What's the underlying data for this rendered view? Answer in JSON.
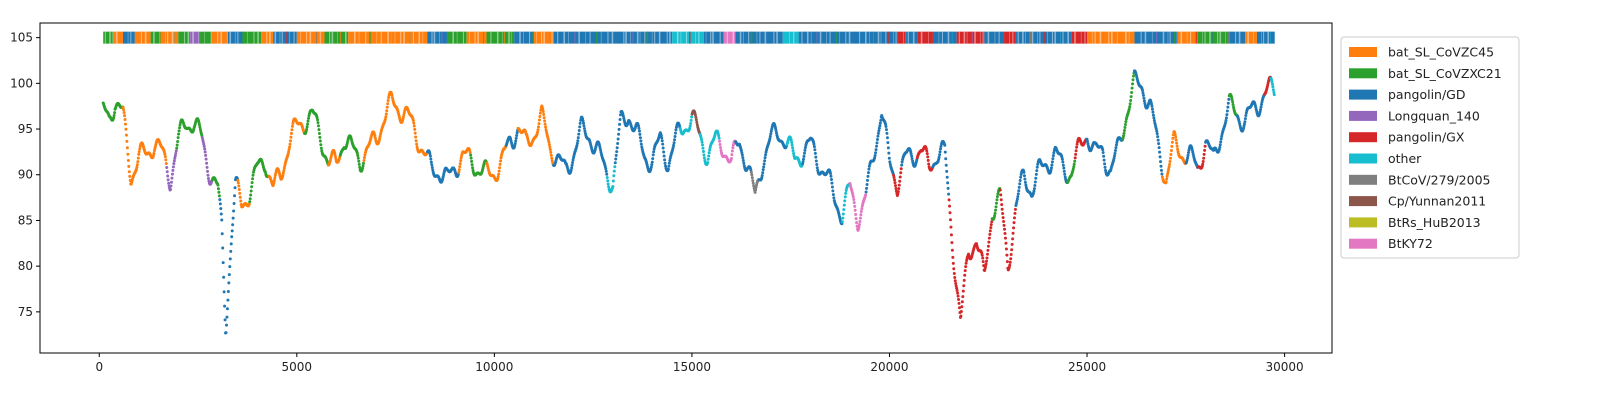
{
  "chart_data": {
    "type": "scatter",
    "xlim": [
      -1500,
      31200
    ],
    "ylim": [
      70.5,
      106.6
    ],
    "x_ticks": [
      0,
      5000,
      10000,
      15000,
      20000,
      25000,
      30000
    ],
    "y_ticks": [
      75,
      80,
      85,
      90,
      95,
      100,
      105
    ],
    "grid": false,
    "legend_placement": "outside-top-right",
    "colors": {
      "bat_SL_CoVZC45": "#ff7f0e",
      "bat_SL_CoVZXC21": "#2ca02c",
      "pangolin/GD": "#1f77b4",
      "Longquan_140": "#9467bd",
      "pangolin/GX": "#d62728",
      "other": "#17becf",
      "BtCoV/279/2005": "#7f7f7f",
      "Cp/Yunnan2011": "#8c564b",
      "BtRs_HuB2013": "#bcbd22",
      "BtKY72": "#e377c2"
    },
    "legend": [
      "bat_SL_CoVZC45",
      "bat_SL_CoVZXC21",
      "pangolin/GD",
      "Longquan_140",
      "pangolin/GX",
      "other",
      "BtCoV/279/2005",
      "Cp/Yunnan2011",
      "BtRs_HuB2013",
      "BtKY72"
    ],
    "strip_y": 105,
    "strip_segments": [
      {
        "x0": 100,
        "x1": 350,
        "series": "bat_SL_CoVZXC21"
      },
      {
        "x0": 350,
        "x1": 600,
        "series": "bat_SL_CoVZC45"
      },
      {
        "x0": 600,
        "x1": 900,
        "series": "pangolin/GD"
      },
      {
        "x0": 900,
        "x1": 1300,
        "series": "bat_SL_CoVZC45"
      },
      {
        "x0": 1300,
        "x1": 1550,
        "series": "bat_SL_CoVZXC21"
      },
      {
        "x0": 1550,
        "x1": 2000,
        "series": "bat_SL_CoVZC45"
      },
      {
        "x0": 2000,
        "x1": 2300,
        "series": "bat_SL_CoVZXC21"
      },
      {
        "x0": 2300,
        "x1": 2550,
        "series": "Longquan_140"
      },
      {
        "x0": 2550,
        "x1": 2850,
        "series": "bat_SL_CoVZXC21"
      },
      {
        "x0": 2850,
        "x1": 3250,
        "series": "bat_SL_CoVZC45"
      },
      {
        "x0": 3250,
        "x1": 3650,
        "series": "pangolin/GD"
      },
      {
        "x0": 3650,
        "x1": 4100,
        "series": "bat_SL_CoVZXC21"
      },
      {
        "x0": 4100,
        "x1": 4400,
        "series": "bat_SL_CoVZC45"
      },
      {
        "x0": 4400,
        "x1": 5000,
        "series": "pangolin/GD"
      },
      {
        "x0": 5000,
        "x1": 5700,
        "series": "bat_SL_CoVZC45"
      },
      {
        "x0": 5700,
        "x1": 6300,
        "series": "bat_SL_CoVZXC21"
      },
      {
        "x0": 6300,
        "x1": 7400,
        "series": "bat_SL_CoVZC45"
      },
      {
        "x0": 7400,
        "x1": 8300,
        "series": "bat_SL_CoVZC45"
      },
      {
        "x0": 8300,
        "x1": 8800,
        "series": "pangolin/GD"
      },
      {
        "x0": 8800,
        "x1": 9300,
        "series": "bat_SL_CoVZXC21"
      },
      {
        "x0": 9300,
        "x1": 9800,
        "series": "bat_SL_CoVZC45"
      },
      {
        "x0": 9800,
        "x1": 10500,
        "series": "bat_SL_CoVZXC21"
      },
      {
        "x0": 10500,
        "x1": 11000,
        "series": "pangolin/GD"
      },
      {
        "x0": 11000,
        "x1": 11500,
        "series": "bat_SL_CoVZC45"
      },
      {
        "x0": 11500,
        "x1": 14500,
        "series": "pangolin/GD"
      },
      {
        "x0": 14500,
        "x1": 15300,
        "series": "other"
      },
      {
        "x0": 15300,
        "x1": 15800,
        "series": "pangolin/GD"
      },
      {
        "x0": 15800,
        "x1": 16100,
        "series": "BtKY72"
      },
      {
        "x0": 16100,
        "x1": 17300,
        "series": "pangolin/GD"
      },
      {
        "x0": 17300,
        "x1": 17700,
        "series": "other"
      },
      {
        "x0": 17700,
        "x1": 19600,
        "series": "pangolin/GD"
      },
      {
        "x0": 19600,
        "x1": 20200,
        "series": "pangolin/GD"
      },
      {
        "x0": 20200,
        "x1": 20400,
        "series": "pangolin/GX"
      },
      {
        "x0": 20400,
        "x1": 20700,
        "series": "pangolin/GD"
      },
      {
        "x0": 20700,
        "x1": 21100,
        "series": "pangolin/GX"
      },
      {
        "x0": 21100,
        "x1": 21700,
        "series": "pangolin/GD"
      },
      {
        "x0": 21700,
        "x1": 22400,
        "series": "pangolin/GX"
      },
      {
        "x0": 22400,
        "x1": 22900,
        "series": "pangolin/GD"
      },
      {
        "x0": 22900,
        "x1": 23200,
        "series": "pangolin/GX"
      },
      {
        "x0": 23200,
        "x1": 24600,
        "series": "pangolin/GD"
      },
      {
        "x0": 24600,
        "x1": 25000,
        "series": "pangolin/GX"
      },
      {
        "x0": 25000,
        "x1": 26200,
        "series": "bat_SL_CoVZC45"
      },
      {
        "x0": 26200,
        "x1": 27300,
        "series": "pangolin/GD"
      },
      {
        "x0": 27300,
        "x1": 27800,
        "series": "bat_SL_CoVZC45"
      },
      {
        "x0": 27800,
        "x1": 28600,
        "series": "bat_SL_CoVZXC21"
      },
      {
        "x0": 28600,
        "x1": 29000,
        "series": "pangolin/GD"
      },
      {
        "x0": 29000,
        "x1": 29300,
        "series": "bat_SL_CoVZC45"
      },
      {
        "x0": 29300,
        "x1": 29750,
        "series": "pangolin/GD"
      }
    ],
    "similarity_profile": [
      {
        "x": 100,
        "y": 96.5
      },
      {
        "x": 250,
        "y": 95.5
      },
      {
        "x": 400,
        "y": 97.5
      },
      {
        "x": 600,
        "y": 96
      },
      {
        "x": 800,
        "y": 90
      },
      {
        "x": 1000,
        "y": 92.5
      },
      {
        "x": 1200,
        "y": 93
      },
      {
        "x": 1400,
        "y": 94
      },
      {
        "x": 1600,
        "y": 92
      },
      {
        "x": 1800,
        "y": 89
      },
      {
        "x": 2000,
        "y": 93
      },
      {
        "x": 2200,
        "y": 95.5
      },
      {
        "x": 2400,
        "y": 96
      },
      {
        "x": 2600,
        "y": 94.5
      },
      {
        "x": 2800,
        "y": 91
      },
      {
        "x": 3000,
        "y": 88.5
      },
      {
        "x": 3100,
        "y": 84
      },
      {
        "x": 3200,
        "y": 73
      },
      {
        "x": 3350,
        "y": 83
      },
      {
        "x": 3450,
        "y": 88
      },
      {
        "x": 3600,
        "y": 86
      },
      {
        "x": 3800,
        "y": 88
      },
      {
        "x": 4000,
        "y": 91
      },
      {
        "x": 4200,
        "y": 92.5
      },
      {
        "x": 4400,
        "y": 89
      },
      {
        "x": 4600,
        "y": 90
      },
      {
        "x": 4800,
        "y": 93
      },
      {
        "x": 5000,
        "y": 94.5
      },
      {
        "x": 5200,
        "y": 95.5
      },
      {
        "x": 5400,
        "y": 96.5
      },
      {
        "x": 5600,
        "y": 95
      },
      {
        "x": 5800,
        "y": 92
      },
      {
        "x": 6000,
        "y": 91.5
      },
      {
        "x": 6200,
        "y": 94
      },
      {
        "x": 6400,
        "y": 92
      },
      {
        "x": 6600,
        "y": 91
      },
      {
        "x": 6800,
        "y": 92.5
      },
      {
        "x": 7000,
        "y": 94
      },
      {
        "x": 7200,
        "y": 97
      },
      {
        "x": 7400,
        "y": 98.5
      },
      {
        "x": 7600,
        "y": 97.5
      },
      {
        "x": 7800,
        "y": 96
      },
      {
        "x": 8000,
        "y": 94
      },
      {
        "x": 8200,
        "y": 92
      },
      {
        "x": 8400,
        "y": 90.5
      },
      {
        "x": 8600,
        "y": 91
      },
      {
        "x": 8800,
        "y": 90
      },
      {
        "x": 9000,
        "y": 91.5
      },
      {
        "x": 9200,
        "y": 92
      },
      {
        "x": 9400,
        "y": 91
      },
      {
        "x": 9600,
        "y": 90
      },
      {
        "x": 9800,
        "y": 89.5
      },
      {
        "x": 10000,
        "y": 90.5
      },
      {
        "x": 10200,
        "y": 92
      },
      {
        "x": 10400,
        "y": 94.5
      },
      {
        "x": 10600,
        "y": 95.5
      },
      {
        "x": 10800,
        "y": 93
      },
      {
        "x": 11000,
        "y": 94
      },
      {
        "x": 11200,
        "y": 95.5
      },
      {
        "x": 11400,
        "y": 93
      },
      {
        "x": 11600,
        "y": 92
      },
      {
        "x": 11800,
        "y": 91
      },
      {
        "x": 12000,
        "y": 93
      },
      {
        "x": 12200,
        "y": 95
      },
      {
        "x": 12400,
        "y": 94
      },
      {
        "x": 12600,
        "y": 92
      },
      {
        "x": 12800,
        "y": 90
      },
      {
        "x": 13000,
        "y": 89
      },
      {
        "x": 13200,
        "y": 96
      },
      {
        "x": 13400,
        "y": 97.5
      },
      {
        "x": 13600,
        "y": 95
      },
      {
        "x": 13800,
        "y": 92
      },
      {
        "x": 14000,
        "y": 91
      },
      {
        "x": 14200,
        "y": 93
      },
      {
        "x": 14400,
        "y": 91
      },
      {
        "x": 14600,
        "y": 94
      },
      {
        "x": 14800,
        "y": 96
      },
      {
        "x": 15000,
        "y": 97
      },
      {
        "x": 15200,
        "y": 94.5
      },
      {
        "x": 15400,
        "y": 92
      },
      {
        "x": 15600,
        "y": 93
      },
      {
        "x": 15800,
        "y": 92.5
      },
      {
        "x": 16000,
        "y": 91
      },
      {
        "x": 16200,
        "y": 94
      },
      {
        "x": 16400,
        "y": 92
      },
      {
        "x": 16600,
        "y": 88
      },
      {
        "x": 16800,
        "y": 92
      },
      {
        "x": 17000,
        "y": 93.5
      },
      {
        "x": 17200,
        "y": 94
      },
      {
        "x": 17400,
        "y": 93
      },
      {
        "x": 17600,
        "y": 91.5
      },
      {
        "x": 17800,
        "y": 93
      },
      {
        "x": 18000,
        "y": 94
      },
      {
        "x": 18200,
        "y": 92
      },
      {
        "x": 18400,
        "y": 90
      },
      {
        "x": 18600,
        "y": 87
      },
      {
        "x": 18800,
        "y": 85
      },
      {
        "x": 19000,
        "y": 88
      },
      {
        "x": 19200,
        "y": 85.5
      },
      {
        "x": 19400,
        "y": 88
      },
      {
        "x": 19600,
        "y": 93
      },
      {
        "x": 19800,
        "y": 97.5
      },
      {
        "x": 20000,
        "y": 91
      },
      {
        "x": 20200,
        "y": 88.5
      },
      {
        "x": 20400,
        "y": 91
      },
      {
        "x": 20600,
        "y": 92
      },
      {
        "x": 20800,
        "y": 93
      },
      {
        "x": 21000,
        "y": 91.5
      },
      {
        "x": 21200,
        "y": 93
      },
      {
        "x": 21400,
        "y": 92.5
      },
      {
        "x": 21600,
        "y": 82
      },
      {
        "x": 21800,
        "y": 73
      },
      {
        "x": 22000,
        "y": 81
      },
      {
        "x": 22200,
        "y": 83
      },
      {
        "x": 22400,
        "y": 79
      },
      {
        "x": 22600,
        "y": 87
      },
      {
        "x": 22800,
        "y": 88
      },
      {
        "x": 23000,
        "y": 80
      },
      {
        "x": 23200,
        "y": 86
      },
      {
        "x": 23400,
        "y": 89
      },
      {
        "x": 23600,
        "y": 88
      },
      {
        "x": 23800,
        "y": 90.5
      },
      {
        "x": 24000,
        "y": 92
      },
      {
        "x": 24200,
        "y": 93
      },
      {
        "x": 24400,
        "y": 91
      },
      {
        "x": 24600,
        "y": 90
      },
      {
        "x": 24800,
        "y": 92
      },
      {
        "x": 25000,
        "y": 94
      },
      {
        "x": 25200,
        "y": 92
      },
      {
        "x": 25400,
        "y": 93
      },
      {
        "x": 25600,
        "y": 91
      },
      {
        "x": 25800,
        "y": 93.5
      },
      {
        "x": 26000,
        "y": 97
      },
      {
        "x": 26200,
        "y": 99.5
      },
      {
        "x": 26400,
        "y": 99
      },
      {
        "x": 26600,
        "y": 97
      },
      {
        "x": 26800,
        "y": 93
      },
      {
        "x": 27000,
        "y": 90
      },
      {
        "x": 27200,
        "y": 94
      },
      {
        "x": 27400,
        "y": 93
      },
      {
        "x": 27600,
        "y": 92
      },
      {
        "x": 27800,
        "y": 90
      },
      {
        "x": 28000,
        "y": 93
      },
      {
        "x": 28200,
        "y": 91
      },
      {
        "x": 28400,
        "y": 95
      },
      {
        "x": 28600,
        "y": 98
      },
      {
        "x": 28800,
        "y": 97.5
      },
      {
        "x": 29000,
        "y": 96
      },
      {
        "x": 29200,
        "y": 97
      },
      {
        "x": 29400,
        "y": 97.5
      },
      {
        "x": 29600,
        "y": 98.5
      },
      {
        "x": 29700,
        "y": 99
      }
    ],
    "profile_series": [
      {
        "x0": 0,
        "x1": 600,
        "series": "bat_SL_CoVZXC21"
      },
      {
        "x0": 600,
        "x1": 1700,
        "series": "bat_SL_CoVZC45"
      },
      {
        "x0": 1700,
        "x1": 1950,
        "series": "Longquan_140"
      },
      {
        "x0": 1950,
        "x1": 2600,
        "series": "bat_SL_CoVZXC21"
      },
      {
        "x0": 2600,
        "x1": 2850,
        "series": "Longquan_140"
      },
      {
        "x0": 2850,
        "x1": 3050,
        "series": "bat_SL_CoVZXC21"
      },
      {
        "x0": 3050,
        "x1": 3500,
        "series": "pangolin/GD"
      },
      {
        "x0": 3500,
        "x1": 3800,
        "series": "bat_SL_CoVZC45"
      },
      {
        "x0": 3800,
        "x1": 4300,
        "series": "bat_SL_CoVZXC21"
      },
      {
        "x0": 4300,
        "x1": 5200,
        "series": "bat_SL_CoVZC45"
      },
      {
        "x0": 5200,
        "x1": 5800,
        "series": "bat_SL_CoVZXC21"
      },
      {
        "x0": 5800,
        "x1": 6100,
        "series": "bat_SL_CoVZC45"
      },
      {
        "x0": 6100,
        "x1": 6700,
        "series": "bat_SL_CoVZXC21"
      },
      {
        "x0": 6700,
        "x1": 8300,
        "series": "bat_SL_CoVZC45"
      },
      {
        "x0": 8300,
        "x1": 9100,
        "series": "pangolin/GD"
      },
      {
        "x0": 9100,
        "x1": 9400,
        "series": "bat_SL_CoVZC45"
      },
      {
        "x0": 9400,
        "x1": 9800,
        "series": "bat_SL_CoVZXC21"
      },
      {
        "x0": 9800,
        "x1": 10300,
        "series": "bat_SL_CoVZC45"
      },
      {
        "x0": 10300,
        "x1": 10600,
        "series": "pangolin/GD"
      },
      {
        "x0": 10600,
        "x1": 11500,
        "series": "bat_SL_CoVZC45"
      },
      {
        "x0": 11500,
        "x1": 12850,
        "series": "pangolin/GD"
      },
      {
        "x0": 12850,
        "x1": 13050,
        "series": "other"
      },
      {
        "x0": 13050,
        "x1": 14700,
        "series": "pangolin/GD"
      },
      {
        "x0": 14700,
        "x1": 15000,
        "series": "other"
      },
      {
        "x0": 15000,
        "x1": 15200,
        "series": "Cp/Yunnan2011"
      },
      {
        "x0": 15200,
        "x1": 15700,
        "series": "other"
      },
      {
        "x0": 15700,
        "x1": 16100,
        "series": "BtKY72"
      },
      {
        "x0": 16100,
        "x1": 16500,
        "series": "pangolin/GD"
      },
      {
        "x0": 16500,
        "x1": 16700,
        "series": "BtCoV/279/2005"
      },
      {
        "x0": 16700,
        "x1": 17400,
        "series": "pangolin/GD"
      },
      {
        "x0": 17400,
        "x1": 17800,
        "series": "other"
      },
      {
        "x0": 17800,
        "x1": 18800,
        "series": "pangolin/GD"
      },
      {
        "x0": 18800,
        "x1": 19000,
        "series": "other"
      },
      {
        "x0": 19000,
        "x1": 19400,
        "series": "BtKY72"
      },
      {
        "x0": 19400,
        "x1": 20100,
        "series": "pangolin/GD"
      },
      {
        "x0": 20100,
        "x1": 20300,
        "series": "pangolin/GX"
      },
      {
        "x0": 20300,
        "x1": 20700,
        "series": "pangolin/GD"
      },
      {
        "x0": 20700,
        "x1": 21100,
        "series": "pangolin/GX"
      },
      {
        "x0": 21100,
        "x1": 21500,
        "series": "pangolin/GD"
      },
      {
        "x0": 21500,
        "x1": 22600,
        "series": "pangolin/GX"
      },
      {
        "x0": 22600,
        "x1": 22800,
        "series": "bat_SL_CoVZXC21"
      },
      {
        "x0": 22800,
        "x1": 23200,
        "series": "pangolin/GX"
      },
      {
        "x0": 23200,
        "x1": 24500,
        "series": "pangolin/GD"
      },
      {
        "x0": 24500,
        "x1": 24700,
        "series": "bat_SL_CoVZXC21"
      },
      {
        "x0": 24700,
        "x1": 25000,
        "series": "pangolin/GX"
      },
      {
        "x0": 25000,
        "x1": 25900,
        "series": "pangolin/GD"
      },
      {
        "x0": 25900,
        "x1": 26200,
        "series": "bat_SL_CoVZXC21"
      },
      {
        "x0": 26200,
        "x1": 26900,
        "series": "pangolin/GD"
      },
      {
        "x0": 26900,
        "x1": 27500,
        "series": "bat_SL_CoVZC45"
      },
      {
        "x0": 27500,
        "x1": 27800,
        "series": "pangolin/GD"
      },
      {
        "x0": 27800,
        "x1": 28000,
        "series": "pangolin/GX"
      },
      {
        "x0": 28000,
        "x1": 28600,
        "series": "pangolin/GD"
      },
      {
        "x0": 28600,
        "x1": 28800,
        "series": "bat_SL_CoVZXC21"
      },
      {
        "x0": 28800,
        "x1": 29500,
        "series": "pangolin/GD"
      },
      {
        "x0": 29500,
        "x1": 29650,
        "series": "pangolin/GX"
      },
      {
        "x0": 29650,
        "x1": 29800,
        "series": "other"
      }
    ]
  }
}
